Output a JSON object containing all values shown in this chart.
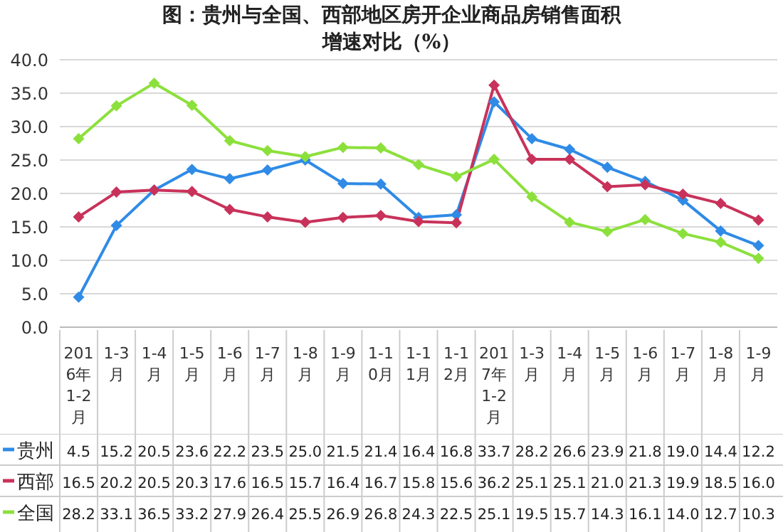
{
  "chart_data": {
    "type": "line",
    "title": "图：贵州与全国、西部地区房开企业商品房销售面积增速对比（%）",
    "categories": [
      "2016年1-2月",
      "1-3月",
      "1-4月",
      "1-5月",
      "1-6月",
      "1-7月",
      "1-8月",
      "1-9月",
      "1-10月",
      "1-11月",
      "1-12月",
      "2017年1-2月",
      "1-3月",
      "1-4月",
      "1-5月",
      "1-6月",
      "1-7月",
      "1-8月",
      "1-9月"
    ],
    "series": [
      {
        "name": "贵州",
        "color": "#2f8be6",
        "values": [
          4.5,
          15.2,
          20.5,
          23.6,
          22.2,
          23.5,
          25.0,
          21.5,
          21.4,
          16.4,
          16.8,
          33.7,
          28.2,
          26.6,
          23.9,
          21.8,
          19.0,
          14.4,
          12.2
        ],
        "value_labels": [
          "4.5",
          "15.2",
          "20.5",
          "23.6",
          "22.2",
          "23.5",
          "25.0",
          "21.5",
          "21.4",
          "16.4",
          "16.8",
          "33.7",
          "28.2",
          "26.6",
          "23.9",
          "21.8",
          "19.0",
          "14.4",
          "12.2"
        ]
      },
      {
        "name": "西部",
        "color": "#c8325a",
        "values": [
          16.5,
          20.2,
          20.5,
          20.3,
          17.6,
          16.5,
          15.7,
          16.4,
          16.7,
          15.8,
          15.6,
          36.2,
          25.1,
          25.1,
          21.0,
          21.3,
          19.9,
          18.5,
          16.0
        ],
        "value_labels": [
          "16.5",
          "20.2",
          "20.5",
          "20.3",
          "17.6",
          "16.5",
          "15.7",
          "16.4",
          "16.7",
          "15.8",
          "15.6",
          "36.2",
          "25.1",
          "25.1",
          "21.0",
          "21.3",
          "19.9",
          "18.5",
          "16.0"
        ]
      },
      {
        "name": "全国",
        "color": "#8ce03c",
        "values": [
          28.2,
          33.1,
          36.5,
          33.2,
          27.9,
          26.4,
          25.5,
          26.9,
          26.8,
          24.3,
          22.5,
          25.1,
          19.5,
          15.7,
          14.3,
          16.1,
          14.0,
          12.7,
          10.3
        ],
        "value_labels": [
          "28.2",
          "33.1",
          "36.5",
          "33.2",
          "27.9",
          "26.4",
          "25.5",
          "26.9",
          "26.8",
          "24.3",
          "22.5",
          "25.1",
          "19.5",
          "15.7",
          "14.3",
          "16.1",
          "14.0",
          "12.7",
          "10.3"
        ]
      }
    ],
    "ylim": [
      0,
      40
    ],
    "yticks": [
      {
        "value": 0,
        "label": "0.0"
      },
      {
        "value": 5,
        "label": "5.0"
      },
      {
        "value": 10,
        "label": "10.0"
      },
      {
        "value": 15,
        "label": "15.0"
      },
      {
        "value": 20,
        "label": "20.0"
      },
      {
        "value": 25,
        "label": "25.0"
      },
      {
        "value": 30,
        "label": "30.0"
      },
      {
        "value": 35,
        "label": "35.0"
      },
      {
        "value": 40,
        "label": "40.0"
      }
    ],
    "grid": "y",
    "marker": "diamond",
    "line_style": "solid",
    "legend": "bottom"
  }
}
